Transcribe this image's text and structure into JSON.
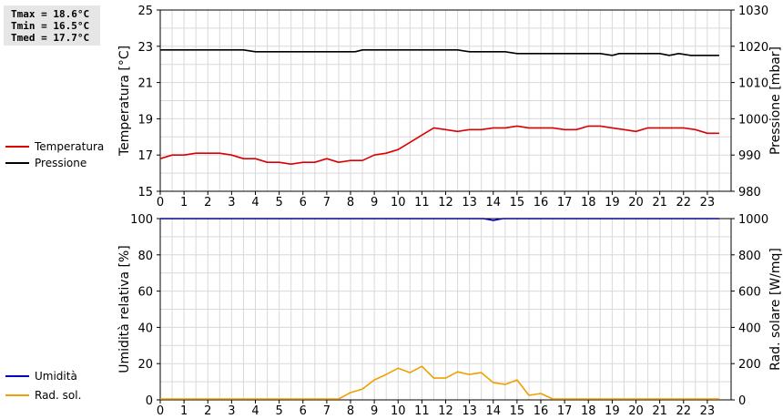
{
  "stats": {
    "tmax": "Tmax = 18.6°C",
    "tmin": "Tmin = 16.5°C",
    "tmed": "Tmed = 17.7°C"
  },
  "legend_top": [
    {
      "label": "Temperatura",
      "color": "#dd0000"
    },
    {
      "label": "Pressione",
      "color": "#000000"
    }
  ],
  "legend_bottom": [
    {
      "label": "Umidità",
      "color": "#0000bb"
    },
    {
      "label": "Rad. sol.",
      "color": "#f0a000"
    }
  ],
  "chart_data": [
    {
      "type": "line",
      "xlim": [
        0,
        24
      ],
      "xticks": [
        "0",
        "1",
        "2",
        "3",
        "4",
        "5",
        "6",
        "7",
        "8",
        "9",
        "10",
        "11",
        "12",
        "13",
        "14",
        "15",
        "16",
        "17",
        "18",
        "19",
        "20",
        "21",
        "22",
        "23"
      ],
      "ylabel_left": "Temperatura [°C]",
      "ylim_left": [
        15,
        25
      ],
      "yticks_left": [
        "15",
        "17",
        "19",
        "21",
        "23",
        "25"
      ],
      "ylabel_right": "Pressione [mbar]",
      "ylim_right": [
        980,
        1030
      ],
      "yticks_right": [
        "980",
        "990",
        "1000",
        "1010",
        "1020",
        "1030"
      ],
      "grid": true,
      "series": [
        {
          "name": "Temperatura",
          "axis": "left",
          "color": "#dd0000",
          "x": [
            0,
            0.5,
            1,
            1.5,
            2,
            2.5,
            3,
            3.5,
            4,
            4.5,
            5,
            5.5,
            6,
            6.5,
            7,
            7.5,
            8,
            8.5,
            9,
            9.5,
            10,
            10.5,
            11,
            11.5,
            12,
            12.5,
            13,
            13.5,
            14,
            14.5,
            15,
            15.5,
            16,
            16.5,
            17,
            17.5,
            18,
            18.5,
            19,
            19.5,
            20,
            20.5,
            21,
            21.5,
            22,
            22.5,
            23,
            23.5
          ],
          "values": [
            16.8,
            17.0,
            17.0,
            17.1,
            17.1,
            17.1,
            17.0,
            16.8,
            16.8,
            16.6,
            16.6,
            16.5,
            16.6,
            16.6,
            16.8,
            16.6,
            16.7,
            16.7,
            17.0,
            17.1,
            17.3,
            17.7,
            18.1,
            18.5,
            18.4,
            18.3,
            18.4,
            18.4,
            18.5,
            18.5,
            18.6,
            18.5,
            18.5,
            18.5,
            18.4,
            18.4,
            18.6,
            18.6,
            18.5,
            18.4,
            18.3,
            18.5,
            18.5,
            18.5,
            18.5,
            18.4,
            18.2,
            18.2
          ]
        },
        {
          "name": "Pressione",
          "axis": "right",
          "color": "#000000",
          "x": [
            0,
            3.5,
            4,
            7.5,
            8.2,
            8.5,
            12.5,
            13,
            14.5,
            15,
            18.5,
            19,
            19.3,
            20,
            21,
            21.4,
            21.8,
            22.3,
            23.5
          ],
          "values": [
            1019,
            1019,
            1018.5,
            1018.5,
            1018.5,
            1019,
            1019,
            1018.5,
            1018.5,
            1018,
            1018,
            1017.5,
            1018,
            1018,
            1018,
            1017.5,
            1018,
            1017.5,
            1017.5
          ]
        }
      ]
    },
    {
      "type": "line",
      "xlim": [
        0,
        24
      ],
      "xticks": [
        "0",
        "1",
        "2",
        "3",
        "4",
        "5",
        "6",
        "7",
        "8",
        "9",
        "10",
        "11",
        "12",
        "13",
        "14",
        "15",
        "16",
        "17",
        "18",
        "19",
        "20",
        "21",
        "22",
        "23"
      ],
      "ylabel_left": "Umidità relativa [%]",
      "ylim_left": [
        0,
        100
      ],
      "yticks_left": [
        "0",
        "20",
        "40",
        "60",
        "80",
        "100"
      ],
      "ylabel_right": "Rad. solare [W/mq]",
      "ylim_right": [
        0,
        1000
      ],
      "yticks_right": [
        "0",
        "200",
        "400",
        "600",
        "800",
        "1000"
      ],
      "grid": true,
      "series": [
        {
          "name": "Umidità",
          "axis": "left",
          "color": "#0000bb",
          "x": [
            0,
            13.6,
            13.8,
            14.0,
            14.2,
            14.4,
            23.5
          ],
          "values": [
            100,
            100,
            99.5,
            99,
            99.5,
            100,
            100
          ]
        },
        {
          "name": "Rad. sol.",
          "axis": "right",
          "color": "#f0a000",
          "x": [
            0,
            0.5,
            1,
            1.5,
            2,
            2.5,
            3,
            3.5,
            4,
            4.5,
            5,
            5.5,
            6,
            6.5,
            7,
            7.5,
            8,
            8.5,
            9,
            9.5,
            10,
            10.5,
            11,
            11.5,
            12,
            12.5,
            13,
            13.5,
            14,
            14.5,
            15,
            15.5,
            16,
            16.5,
            17,
            17.5,
            18,
            18.5,
            19,
            19.5,
            20,
            20.5,
            21,
            21.5,
            22,
            22.5,
            23,
            23.5
          ],
          "values": [
            5,
            5,
            5,
            5,
            5,
            5,
            5,
            5,
            5,
            5,
            5,
            5,
            5,
            5,
            5,
            5,
            40,
            60,
            110,
            140,
            175,
            150,
            185,
            120,
            120,
            155,
            140,
            150,
            95,
            85,
            110,
            25,
            35,
            5,
            5,
            5,
            5,
            5,
            5,
            5,
            5,
            5,
            5,
            5,
            5,
            5,
            5,
            5
          ]
        }
      ]
    }
  ]
}
